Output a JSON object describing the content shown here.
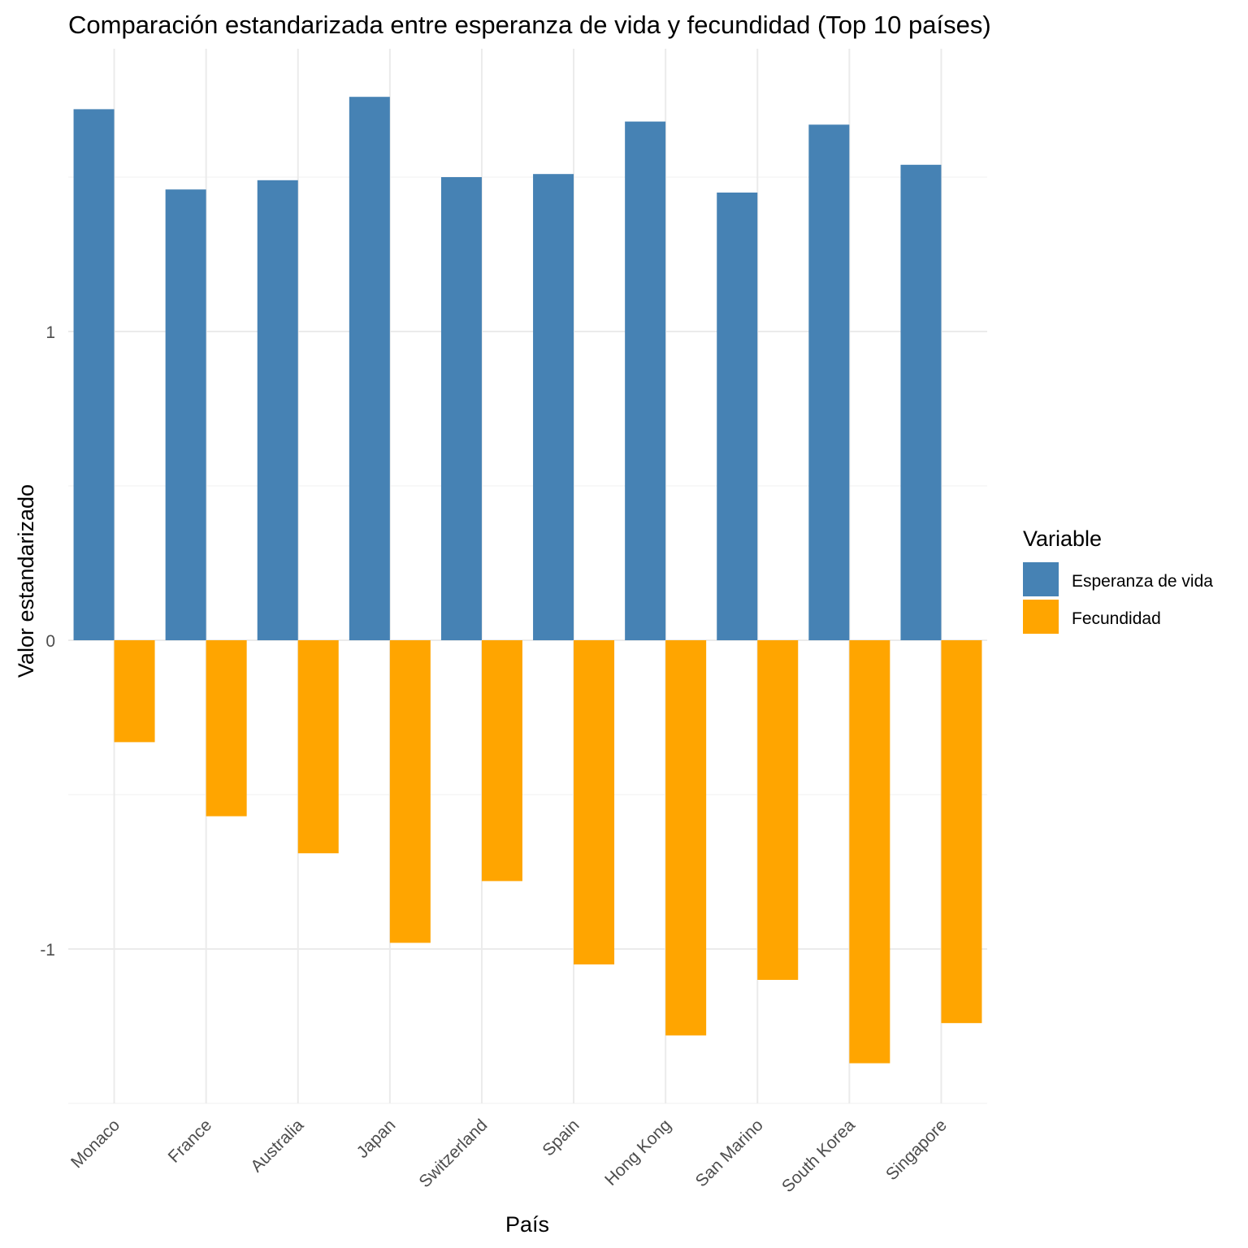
{
  "chart_data": {
    "type": "bar",
    "title": "Comparación estandarizada entre esperanza de vida y fecundidad (Top 10 países)",
    "xlabel": "País",
    "ylabel": "Valor estandarizado",
    "categories": [
      "Monaco",
      "France",
      "Australia",
      "Japan",
      "Switzerland",
      "Spain",
      "Hong Kong",
      "San Marino",
      "South Korea",
      "Singapore"
    ],
    "series": [
      {
        "name": "Esperanza de vida",
        "color": "#4682B4",
        "values": [
          1.72,
          1.46,
          1.49,
          1.76,
          1.5,
          1.51,
          1.68,
          1.45,
          1.67,
          1.54
        ]
      },
      {
        "name": "Fecundidad",
        "color": "#FFA500",
        "values": [
          -0.33,
          -0.57,
          -0.69,
          -0.98,
          -0.78,
          -1.05,
          -1.28,
          -1.1,
          -1.37,
          -1.24
        ]
      }
    ],
    "ylim": [
      -1.5,
      1.9
    ],
    "yticks": [
      -1,
      0,
      1
    ],
    "ytick_labels": [
      "-1",
      "0",
      "1"
    ],
    "legend": {
      "title": "Variable",
      "position": "right"
    },
    "grid": true
  }
}
